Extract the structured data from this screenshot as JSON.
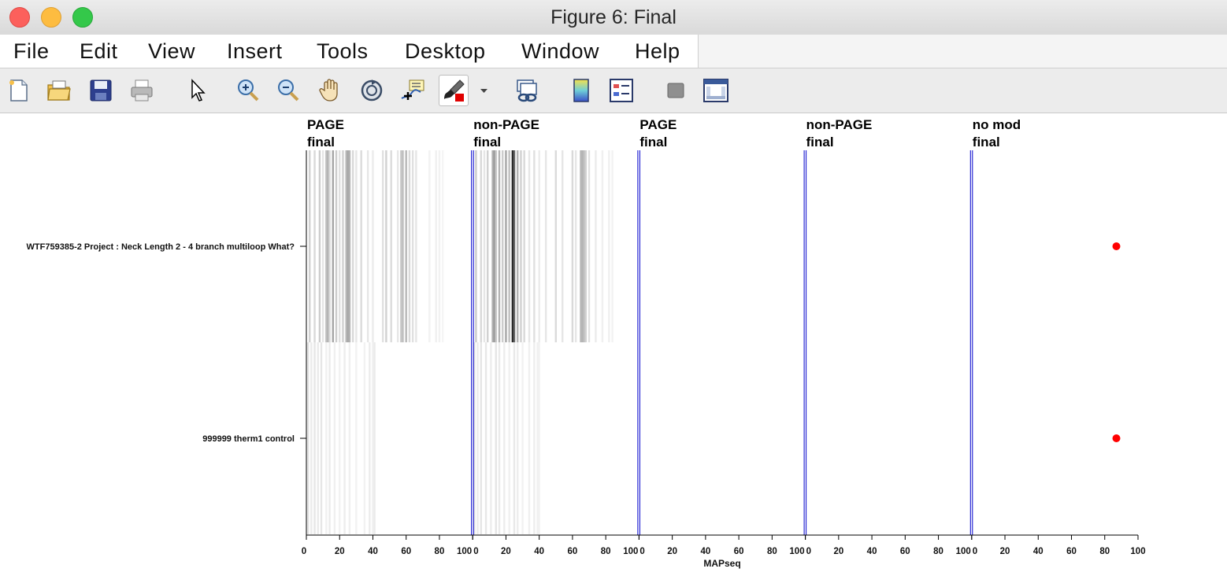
{
  "window": {
    "title": "Figure 6: Final"
  },
  "menu": [
    "File",
    "Edit",
    "View",
    "Insert",
    "Tools",
    "Desktop",
    "Window",
    "Help"
  ],
  "toolbar": {
    "icons": [
      "new-figure-icon",
      "open-file-icon",
      "save-icon",
      "print-icon",
      "pointer-icon",
      "zoom-in-icon",
      "zoom-out-icon",
      "pan-hand-icon",
      "rotate-3d-icon",
      "data-cursor-icon",
      "brush-icon",
      "link-plot-icon",
      "colorbar-icon",
      "legend-icon",
      "hide-plot-tools-icon",
      "show-plot-tools-icon"
    ]
  },
  "chart_data": {
    "type": "heatmap",
    "xlabel": "MAPseq",
    "panels": [
      {
        "title": [
          "PAGE",
          "final"
        ]
      },
      {
        "title": [
          "non-PAGE",
          "final"
        ]
      },
      {
        "title": [
          "PAGE",
          "final"
        ]
      },
      {
        "title": [
          "non-PAGE",
          "final"
        ]
      },
      {
        "title": [
          "no mod",
          "final"
        ]
      }
    ],
    "xticks": [
      0,
      20,
      40,
      60,
      80,
      100
    ],
    "xlim": [
      0,
      100
    ],
    "rows": [
      "WTF759385-2 Project : Neck Length 2 - 4 branch multiloop What?",
      "999999 therm1 control"
    ],
    "bands": [
      [
        [
          [
            2,
            0.18
          ],
          [
            5,
            0.15
          ],
          [
            8,
            0.2
          ],
          [
            10,
            0.1
          ],
          [
            12,
            0.25
          ],
          [
            13,
            0.3
          ],
          [
            14,
            0.15
          ],
          [
            16,
            0.35
          ],
          [
            18,
            0.2
          ],
          [
            20,
            0.12
          ],
          [
            22,
            0.18
          ],
          [
            24,
            0.28
          ],
          [
            25,
            0.35
          ],
          [
            26,
            0.3
          ],
          [
            28,
            0.15
          ],
          [
            30,
            0.1
          ],
          [
            33,
            0.14
          ],
          [
            37,
            0.1
          ],
          [
            40,
            0.08
          ],
          [
            46,
            0.12
          ],
          [
            48,
            0.18
          ],
          [
            51,
            0.14
          ],
          [
            55,
            0.1
          ],
          [
            57,
            0.22
          ],
          [
            58,
            0.25
          ],
          [
            60,
            0.28
          ],
          [
            62,
            0.15
          ],
          [
            64,
            0.12
          ],
          [
            66,
            0.1
          ],
          [
            74,
            0.05
          ],
          [
            78,
            0.06
          ],
          [
            80,
            0.05
          ],
          [
            82,
            0.04
          ]
        ],
        [
          [
            2,
            0.2
          ],
          [
            5,
            0.15
          ],
          [
            7,
            0.1
          ],
          [
            9,
            0.18
          ],
          [
            12,
            0.3
          ],
          [
            13,
            0.4
          ],
          [
            14,
            0.22
          ],
          [
            16,
            0.3
          ],
          [
            18,
            0.2
          ],
          [
            20,
            0.35
          ],
          [
            22,
            0.25
          ],
          [
            24,
            0.85
          ],
          [
            25,
            0.6
          ],
          [
            27,
            0.3
          ],
          [
            29,
            0.18
          ],
          [
            31,
            0.15
          ],
          [
            34,
            0.1
          ],
          [
            37,
            0.12
          ],
          [
            40,
            0.08
          ],
          [
            44,
            0.1
          ],
          [
            50,
            0.14
          ],
          [
            54,
            0.1
          ],
          [
            60,
            0.15
          ],
          [
            62,
            0.1
          ],
          [
            65,
            0.28
          ],
          [
            66,
            0.3
          ],
          [
            67,
            0.25
          ],
          [
            68,
            0.18
          ],
          [
            70,
            0.12
          ],
          [
            74,
            0.08
          ],
          [
            78,
            0.06
          ],
          [
            82,
            0.06
          ],
          [
            84,
            0.05
          ]
        ],
        [],
        [],
        []
      ],
      [
        [
          [
            1,
            0.12
          ],
          [
            3,
            0.08
          ],
          [
            5,
            0.1
          ],
          [
            7,
            0.08
          ],
          [
            9,
            0.1
          ],
          [
            12,
            0.06
          ],
          [
            14,
            0.08
          ],
          [
            17,
            0.06
          ],
          [
            20,
            0.05
          ],
          [
            23,
            0.07
          ],
          [
            26,
            0.06
          ],
          [
            30,
            0.05
          ],
          [
            35,
            0.05
          ],
          [
            38,
            0.07
          ],
          [
            40,
            0.06
          ],
          [
            41,
            0.08
          ]
        ],
        [
          [
            1,
            0.12
          ],
          [
            3,
            0.08
          ],
          [
            5,
            0.1
          ],
          [
            8,
            0.09
          ],
          [
            11,
            0.07
          ],
          [
            14,
            0.1
          ],
          [
            16,
            0.08
          ],
          [
            19,
            0.07
          ],
          [
            22,
            0.06
          ],
          [
            25,
            0.09
          ],
          [
            27,
            0.07
          ],
          [
            30,
            0.05
          ],
          [
            34,
            0.06
          ],
          [
            37,
            0.07
          ],
          [
            39,
            0.06
          ],
          [
            40,
            0.05
          ]
        ],
        [],
        [],
        []
      ]
    ],
    "markers": [
      {
        "row": 0,
        "panel": 4,
        "x": 87,
        "color": "#ff0000"
      },
      {
        "row": 1,
        "panel": 4,
        "x": 87,
        "color": "#ff0000"
      }
    ],
    "separator_color": "#0000cc"
  }
}
